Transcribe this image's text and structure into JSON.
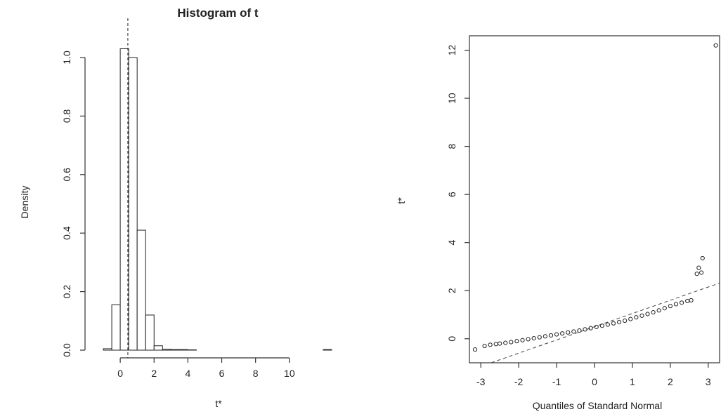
{
  "chart_data": [
    {
      "type": "bar",
      "title": "Histogram of t",
      "xlabel": "t*",
      "ylabel": "Density",
      "xlim": [
        -1.5,
        12.5
      ],
      "ylim": [
        0,
        1.05
      ],
      "x_ticks": [
        0,
        2,
        4,
        6,
        8,
        10
      ],
      "y_ticks": [
        0.0,
        0.2,
        0.4,
        0.6,
        0.8,
        1.0
      ],
      "bin_width": 0.5,
      "bins": [
        {
          "start": -1.0,
          "value": 0.005
        },
        {
          "start": -0.5,
          "value": 0.155
        },
        {
          "start": 0.0,
          "value": 1.03
        },
        {
          "start": 0.5,
          "value": 1.0
        },
        {
          "start": 1.0,
          "value": 0.41
        },
        {
          "start": 1.5,
          "value": 0.12
        },
        {
          "start": 2.0,
          "value": 0.015
        },
        {
          "start": 2.5,
          "value": 0.003
        },
        {
          "start": 3.0,
          "value": 0.002
        },
        {
          "start": 3.5,
          "value": 0.002
        },
        {
          "start": 4.0,
          "value": 0.001
        },
        {
          "start": 12.0,
          "value": 0.002
        }
      ],
      "reference_line_x": 0.45,
      "grid": false
    },
    {
      "type": "scatter",
      "title": "",
      "xlabel": "Quantiles of Standard Normal",
      "ylabel": "t*",
      "xlim": [
        -3.3,
        3.3
      ],
      "ylim": [
        -1,
        12.6
      ],
      "x_ticks": [
        -3,
        -2,
        -1,
        0,
        1,
        2,
        3
      ],
      "y_ticks": [
        0,
        2,
        4,
        6,
        8,
        10,
        12
      ],
      "qq_line": {
        "intercept": 0.5,
        "slope": 0.55
      },
      "grid": false,
      "series": [
        {
          "points": [
            [
              -3.15,
              -0.45
            ],
            [
              -2.9,
              -0.3
            ],
            [
              -2.75,
              -0.25
            ],
            [
              -2.6,
              -0.22
            ],
            [
              -2.5,
              -0.2
            ],
            [
              -2.35,
              -0.17
            ],
            [
              -2.2,
              -0.14
            ],
            [
              -2.05,
              -0.1
            ],
            [
              -1.9,
              -0.06
            ],
            [
              -1.75,
              -0.02
            ],
            [
              -1.6,
              0.02
            ],
            [
              -1.45,
              0.06
            ],
            [
              -1.3,
              0.1
            ],
            [
              -1.15,
              0.14
            ],
            [
              -1.0,
              0.18
            ],
            [
              -0.85,
              0.22
            ],
            [
              -0.7,
              0.26
            ],
            [
              -0.55,
              0.3
            ],
            [
              -0.4,
              0.34
            ],
            [
              -0.25,
              0.39
            ],
            [
              -0.1,
              0.44
            ],
            [
              0.05,
              0.49
            ],
            [
              0.2,
              0.54
            ],
            [
              0.35,
              0.59
            ],
            [
              0.5,
              0.64
            ],
            [
              0.65,
              0.69
            ],
            [
              0.8,
              0.75
            ],
            [
              0.95,
              0.82
            ],
            [
              1.1,
              0.89
            ],
            [
              1.25,
              0.96
            ],
            [
              1.4,
              1.03
            ],
            [
              1.55,
              1.1
            ],
            [
              1.7,
              1.18
            ],
            [
              1.85,
              1.27
            ],
            [
              2.0,
              1.36
            ],
            [
              2.15,
              1.44
            ],
            [
              2.3,
              1.5
            ],
            [
              2.45,
              1.57
            ],
            [
              2.55,
              1.6
            ],
            [
              2.7,
              2.7
            ],
            [
              2.82,
              2.75
            ],
            [
              2.85,
              3.35
            ],
            [
              2.75,
              2.95
            ],
            [
              3.2,
              12.2
            ]
          ]
        }
      ]
    }
  ]
}
